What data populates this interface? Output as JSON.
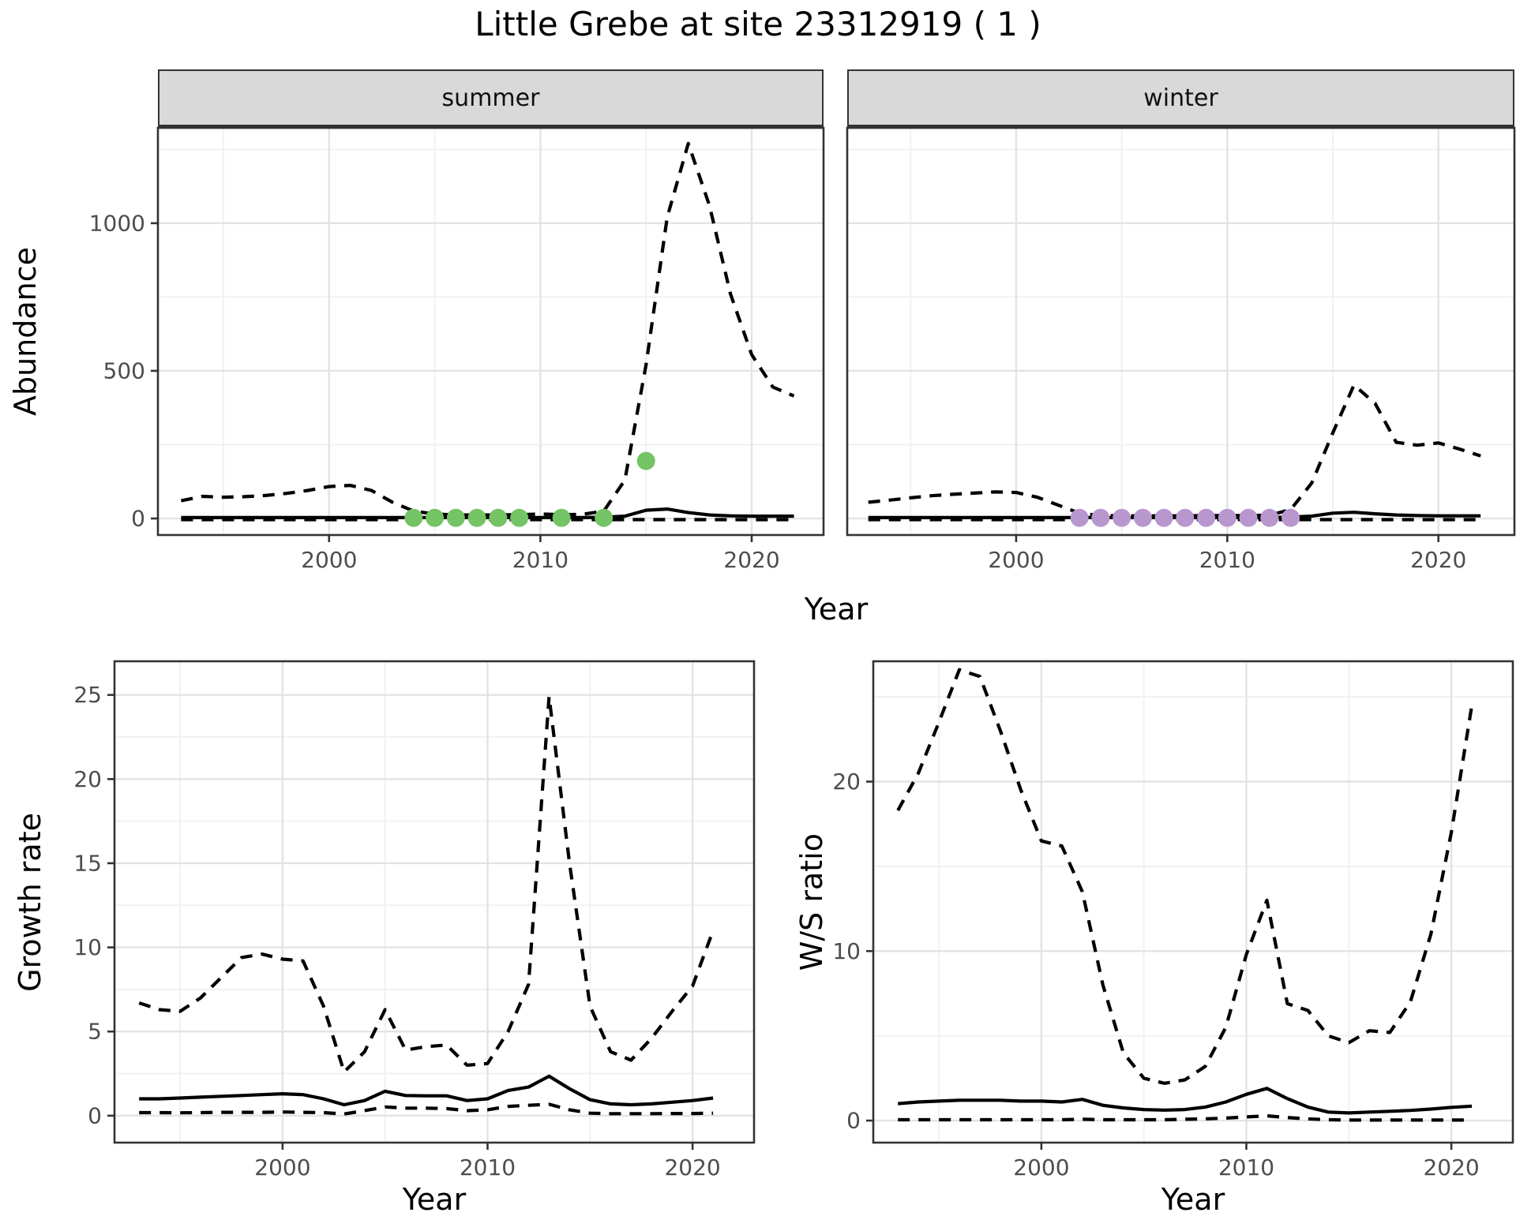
{
  "title": "Little Grebe at site 23312919 ( 1 )",
  "facets": [
    {
      "label": "summer"
    },
    {
      "label": "winter"
    }
  ],
  "axis_titles": {
    "abundance": "Abundance",
    "year_top": "Year",
    "growth": "Growth rate",
    "ws": "W/S ratio",
    "year_bottom_left": "Year",
    "year_bottom_right": "Year"
  },
  "colors": {
    "observed_summer": "#74C365",
    "observed_winter": "#B897CF",
    "line": "#000000",
    "strip_fill": "#D9D9D9",
    "grid_major": "#E3E3E3",
    "grid_minor": "#F1F1F1",
    "panel_border": "#333333",
    "tick_text": "#4D4D4D"
  },
  "chart_data": [
    {
      "id": "abundance-summer",
      "type": "line",
      "facet": "summer",
      "xlabel": "Year",
      "ylabel": "Abundance",
      "xlim": [
        1991.9,
        2023.4
      ],
      "ylim": [
        -56,
        1323
      ],
      "x_ticks": [
        2000,
        2010,
        2020
      ],
      "y_ticks": [
        0,
        500,
        1000
      ],
      "x_minor": [
        1995,
        2005,
        2015
      ],
      "y_minor": [
        250,
        750,
        1250
      ],
      "x": [
        1993,
        1994,
        1995,
        1996,
        1997,
        1998,
        1999,
        2000,
        2001,
        2002,
        2003,
        2004,
        2005,
        2006,
        2007,
        2008,
        2009,
        2010,
        2011,
        2012,
        2013,
        2014,
        2015,
        2016,
        2017,
        2018,
        2019,
        2020,
        2021,
        2022
      ],
      "series": [
        {
          "name": "upper_ci",
          "style": "dashed",
          "values": [
            60,
            75,
            72,
            74,
            78,
            85,
            95,
            108,
            112,
            95,
            55,
            25,
            15,
            12,
            12,
            12,
            13,
            15,
            13,
            14,
            25,
            130,
            520,
            1020,
            1270,
            1060,
            760,
            555,
            445,
            415
          ]
        },
        {
          "name": "median",
          "style": "solid",
          "values": [
            3,
            3,
            3,
            3,
            3,
            3,
            3,
            3,
            3,
            3,
            3,
            3,
            3,
            3,
            3,
            3,
            3,
            3,
            3,
            3,
            4,
            8,
            28,
            32,
            20,
            12,
            9,
            8,
            8,
            8
          ]
        },
        {
          "name": "lower_ci",
          "style": "dashed",
          "values": [
            -4,
            -4,
            -4,
            -4,
            -4,
            -4,
            -4,
            -4,
            -4,
            -4,
            -4,
            -4,
            -4,
            -4,
            -4,
            -4,
            -4,
            -4,
            -4,
            -4,
            -4,
            -4,
            -4,
            -4,
            -4,
            -4,
            -4,
            -4,
            -4,
            -4
          ]
        }
      ],
      "points": {
        "name": "observed-counts-summer",
        "color": "#74C365",
        "x": [
          2004,
          2005,
          2006,
          2007,
          2008,
          2009,
          2011,
          2013,
          2015
        ],
        "y": [
          2,
          2,
          2,
          2,
          2,
          2,
          2,
          2,
          195
        ]
      }
    },
    {
      "id": "abundance-winter",
      "type": "line",
      "facet": "winter",
      "xlabel": "Year",
      "ylabel": "Abundance",
      "xlim": [
        1992.0,
        2023.6
      ],
      "ylim": [
        -56,
        1323
      ],
      "x_ticks": [
        2000,
        2010,
        2020
      ],
      "y_ticks": [
        0,
        500,
        1000
      ],
      "x_minor": [
        1995,
        2005,
        2015
      ],
      "y_minor": [
        250,
        750,
        1250
      ],
      "x": [
        1993,
        1994,
        1995,
        1996,
        1997,
        1998,
        1999,
        2000,
        2001,
        2002,
        2003,
        2004,
        2005,
        2006,
        2007,
        2008,
        2009,
        2010,
        2011,
        2012,
        2013,
        2014,
        2015,
        2016,
        2017,
        2018,
        2019,
        2020,
        2021,
        2022
      ],
      "series": [
        {
          "name": "upper_ci",
          "style": "dashed",
          "values": [
            55,
            62,
            70,
            77,
            82,
            86,
            90,
            88,
            72,
            45,
            18,
            10,
            9,
            9,
            9,
            9,
            10,
            10,
            10,
            11,
            30,
            120,
            290,
            452,
            390,
            258,
            248,
            256,
            235,
            212
          ]
        },
        {
          "name": "median",
          "style": "solid",
          "values": [
            3,
            3,
            3,
            3,
            3,
            3,
            3,
            3,
            3,
            3,
            3,
            3,
            3,
            3,
            3,
            3,
            3,
            3,
            3,
            3,
            5,
            8,
            18,
            21,
            16,
            12,
            10,
            9,
            9,
            9
          ]
        },
        {
          "name": "lower_ci",
          "style": "dashed",
          "values": [
            -4,
            -4,
            -4,
            -4,
            -4,
            -4,
            -4,
            -4,
            -4,
            -4,
            -4,
            -4,
            -4,
            -4,
            -4,
            -4,
            -4,
            -4,
            -4,
            -4,
            -4,
            -4,
            -4,
            -4,
            -4,
            -4,
            -4,
            -4,
            -4,
            -4
          ]
        }
      ],
      "points": {
        "name": "observed-counts-winter",
        "color": "#B897CF",
        "x": [
          2003,
          2004,
          2005,
          2006,
          2007,
          2008,
          2009,
          2010,
          2011,
          2012,
          2013
        ],
        "y": [
          2,
          2,
          2,
          2,
          2,
          2,
          2,
          2,
          2,
          2,
          2
        ]
      }
    },
    {
      "id": "growth-rate",
      "type": "line",
      "xlabel": "Year",
      "ylabel": "Growth rate",
      "xlim": [
        1991.8,
        2023.0
      ],
      "ylim": [
        -1.6,
        27.0
      ],
      "x_ticks": [
        2000,
        2010,
        2020
      ],
      "y_ticks": [
        0,
        5,
        10,
        15,
        20,
        25
      ],
      "x_minor": [
        1995,
        2005,
        2015
      ],
      "y_minor": [
        2.5,
        7.5,
        12.5,
        17.5,
        22.5
      ],
      "x": [
        1993,
        1994,
        1995,
        1996,
        1997,
        1998,
        1999,
        2000,
        2001,
        2002,
        2003,
        2004,
        2005,
        2006,
        2007,
        2008,
        2009,
        2010,
        2011,
        2012,
        2013,
        2014,
        2015,
        2016,
        2017,
        2018,
        2019,
        2020,
        2021
      ],
      "series": [
        {
          "name": "upper_ci",
          "style": "dashed",
          "values": [
            6.7,
            6.3,
            6.2,
            7.0,
            8.2,
            9.4,
            9.6,
            9.3,
            9.2,
            6.5,
            2.6,
            3.8,
            6.3,
            3.9,
            4.1,
            4.2,
            3.0,
            3.1,
            5.0,
            7.8,
            24.9,
            15.0,
            6.5,
            3.8,
            3.3,
            4.6,
            6.2,
            7.7,
            11.0
          ]
        },
        {
          "name": "median",
          "style": "solid",
          "values": [
            1.0,
            1.0,
            1.05,
            1.1,
            1.15,
            1.2,
            1.25,
            1.3,
            1.25,
            1.0,
            0.65,
            0.9,
            1.45,
            1.2,
            1.18,
            1.18,
            0.9,
            1.0,
            1.5,
            1.7,
            2.35,
            1.6,
            0.95,
            0.7,
            0.65,
            0.7,
            0.8,
            0.9,
            1.05
          ]
        },
        {
          "name": "lower_ci",
          "style": "dashed",
          "values": [
            0.18,
            0.18,
            0.17,
            0.18,
            0.2,
            0.2,
            0.2,
            0.22,
            0.2,
            0.18,
            0.1,
            0.3,
            0.52,
            0.45,
            0.45,
            0.42,
            0.3,
            0.35,
            0.55,
            0.62,
            0.68,
            0.35,
            0.15,
            0.12,
            0.12,
            0.12,
            0.13,
            0.13,
            0.15
          ]
        }
      ]
    },
    {
      "id": "ws-ratio",
      "type": "line",
      "xlabel": "Year",
      "ylabel": "W/S ratio",
      "xlim": [
        1991.8,
        2023.0
      ],
      "ylim": [
        -1.3,
        27.1
      ],
      "x_ticks": [
        2000,
        2010,
        2020
      ],
      "y_ticks": [
        0,
        10,
        20
      ],
      "x_minor": [
        1995,
        2005,
        2015
      ],
      "y_minor": [
        5,
        15,
        25
      ],
      "x": [
        1993,
        1994,
        1995,
        1996,
        1997,
        1998,
        1999,
        2000,
        2001,
        2002,
        2003,
        2004,
        2005,
        2006,
        2007,
        2008,
        2009,
        2010,
        2011,
        2012,
        2013,
        2014,
        2015,
        2016,
        2017,
        2018,
        2019,
        2020,
        2021
      ],
      "series": [
        {
          "name": "upper_ci",
          "style": "dashed",
          "values": [
            18.3,
            20.5,
            23.5,
            26.6,
            26.2,
            23.0,
            19.5,
            16.5,
            16.2,
            13.5,
            8.0,
            4.0,
            2.5,
            2.2,
            2.4,
            3.2,
            5.5,
            9.8,
            13.0,
            6.9,
            6.5,
            5.0,
            4.6,
            5.3,
            5.2,
            7.0,
            11.0,
            17.0,
            24.5
          ]
        },
        {
          "name": "median",
          "style": "solid",
          "values": [
            1.0,
            1.1,
            1.15,
            1.2,
            1.2,
            1.2,
            1.15,
            1.15,
            1.1,
            1.25,
            0.9,
            0.75,
            0.65,
            0.62,
            0.65,
            0.8,
            1.1,
            1.55,
            1.9,
            1.3,
            0.8,
            0.5,
            0.45,
            0.5,
            0.55,
            0.6,
            0.68,
            0.78,
            0.85
          ]
        },
        {
          "name": "lower_ci",
          "style": "dashed",
          "values": [
            0.05,
            0.05,
            0.05,
            0.05,
            0.05,
            0.05,
            0.05,
            0.05,
            0.05,
            0.08,
            0.05,
            0.05,
            0.05,
            0.05,
            0.08,
            0.1,
            0.15,
            0.22,
            0.28,
            0.18,
            0.1,
            0.05,
            0.03,
            0.03,
            0.03,
            0.03,
            0.03,
            0.03,
            0.03
          ]
        }
      ]
    }
  ]
}
